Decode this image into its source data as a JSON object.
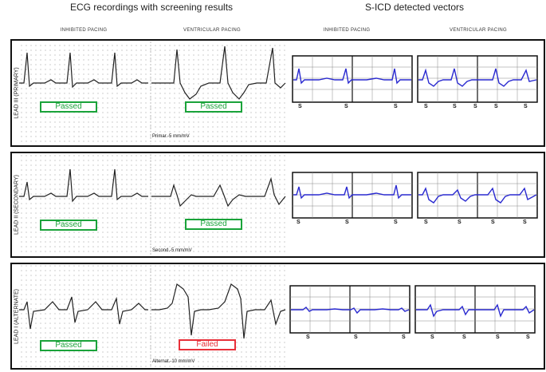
{
  "headers": {
    "left": "ECG recordings with screening results",
    "right": "S-ICD detected vectors"
  },
  "column_labels": {
    "inhibited": "INHIBITED   PACING",
    "ventricular": "VENTRICULAR   PACING"
  },
  "rows": [
    {
      "lead": "LEAD III (PRIMARY)",
      "inhibited_result": "Passed",
      "ventricular_result": "Passed",
      "scale": "Primar.-5 mm/mV",
      "s_marker": "S"
    },
    {
      "lead": "LEAD II (SECONDARY)",
      "inhibited_result": "Passed",
      "ventricular_result": "Passed",
      "scale": "Second.-5 mm/mV",
      "s_marker": "S"
    },
    {
      "lead": "LEAD I (ALTERNATE)",
      "inhibited_result": "Passed",
      "ventricular_result": "Failed",
      "scale": "Alternat.-10 mm/mV",
      "s_marker": "S"
    }
  ],
  "colors": {
    "passed": "#1aa33a",
    "failed": "#e8303a",
    "vector": "#2a2ad0",
    "grid_dot": "#9a9a9a",
    "trace": "#222222"
  }
}
